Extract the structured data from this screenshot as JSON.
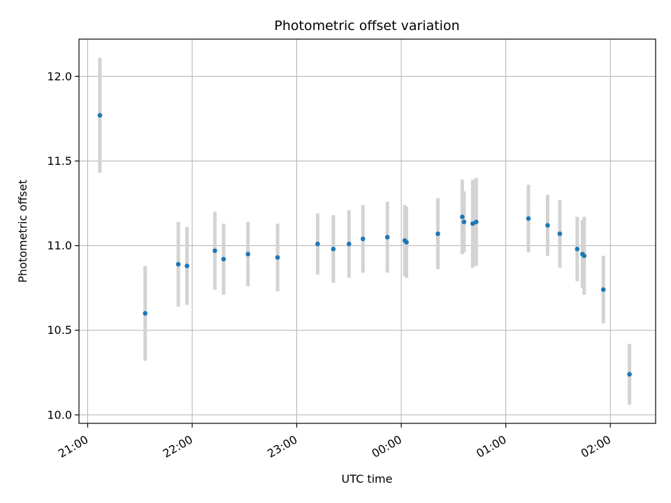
{
  "chart_data": {
    "type": "scatter",
    "title": "Photometric offset variation",
    "xlabel": "UTC time",
    "ylabel": "Photometric offset",
    "x_axis_kind": "time",
    "xlim": [
      "20:55",
      "02:26"
    ],
    "ylim": [
      9.95,
      12.22
    ],
    "x_ticks": [
      "21:00",
      "22:00",
      "23:00",
      "00:00",
      "01:00",
      "02:00"
    ],
    "y_ticks": [
      "10.0",
      "10.5",
      "11.0",
      "11.5",
      "12.0"
    ],
    "grid": true,
    "colors": {
      "marker": "#1f77b4",
      "errorbar": "#d3d3d3",
      "grid": "#b0b0b0"
    },
    "points": [
      {
        "x": "21:07",
        "y": 11.77,
        "yerr": 0.34
      },
      {
        "x": "21:33",
        "y": 10.6,
        "yerr": 0.28
      },
      {
        "x": "21:52",
        "y": 10.89,
        "yerr": 0.25
      },
      {
        "x": "21:57",
        "y": 10.88,
        "yerr": 0.23
      },
      {
        "x": "22:13",
        "y": 10.97,
        "yerr": 0.23
      },
      {
        "x": "22:18",
        "y": 10.92,
        "yerr": 0.21
      },
      {
        "x": "22:32",
        "y": 10.95,
        "yerr": 0.19
      },
      {
        "x": "22:49",
        "y": 10.93,
        "yerr": 0.2
      },
      {
        "x": "23:12",
        "y": 11.01,
        "yerr": 0.18
      },
      {
        "x": "23:21",
        "y": 10.98,
        "yerr": 0.2
      },
      {
        "x": "23:30",
        "y": 11.01,
        "yerr": 0.2
      },
      {
        "x": "23:38",
        "y": 11.04,
        "yerr": 0.2
      },
      {
        "x": "23:52",
        "y": 11.05,
        "yerr": 0.21
      },
      {
        "x": "00:02",
        "y": 11.03,
        "yerr": 0.21
      },
      {
        "x": "00:03",
        "y": 11.02,
        "yerr": 0.21
      },
      {
        "x": "00:21",
        "y": 11.07,
        "yerr": 0.21
      },
      {
        "x": "00:35",
        "y": 11.17,
        "yerr": 0.22
      },
      {
        "x": "00:36",
        "y": 11.14,
        "yerr": 0.18
      },
      {
        "x": "00:41",
        "y": 11.13,
        "yerr": 0.26
      },
      {
        "x": "00:43",
        "y": 11.14,
        "yerr": 0.26
      },
      {
        "x": "01:13",
        "y": 11.16,
        "yerr": 0.2
      },
      {
        "x": "01:24",
        "y": 11.12,
        "yerr": 0.18
      },
      {
        "x": "01:31",
        "y": 11.07,
        "yerr": 0.2
      },
      {
        "x": "01:41",
        "y": 10.98,
        "yerr": 0.19
      },
      {
        "x": "01:44",
        "y": 10.95,
        "yerr": 0.2
      },
      {
        "x": "01:45",
        "y": 10.94,
        "yerr": 0.23
      },
      {
        "x": "01:56",
        "y": 10.74,
        "yerr": 0.2
      },
      {
        "x": "02:11",
        "y": 10.24,
        "yerr": 0.18
      }
    ]
  }
}
